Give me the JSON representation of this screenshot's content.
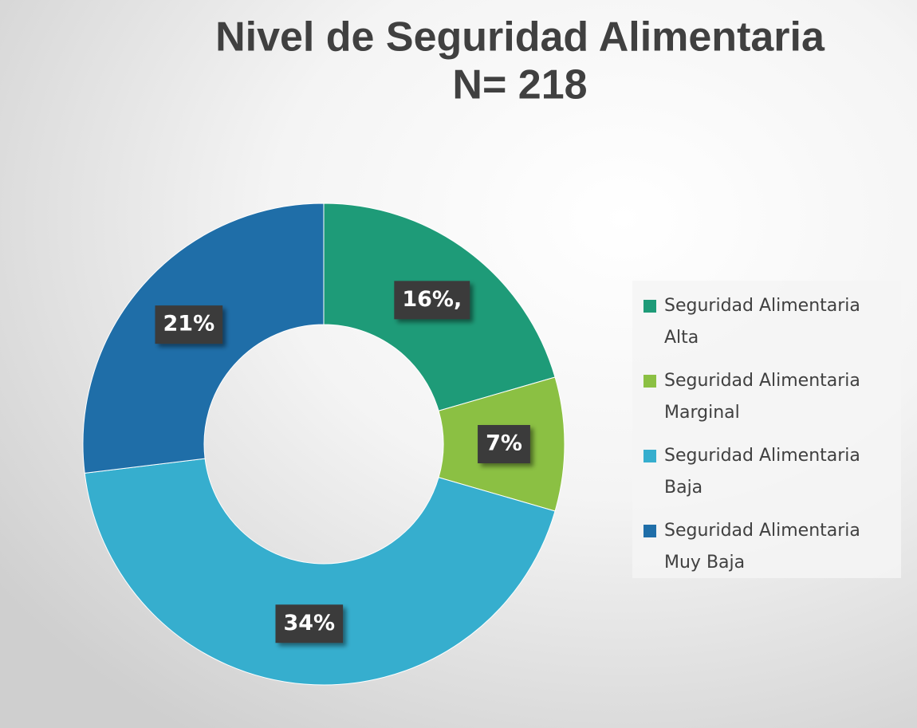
{
  "chart_data": {
    "type": "donut",
    "title": [
      "Nivel de Seguridad Alimentaria",
      "N= 218"
    ],
    "categories": [
      "Seguridad Alimentaria Alta",
      "Seguridad Alimentaria Marginal",
      "Seguridad Alimentaria Baja",
      "Seguridad Alimentaria Muy Baja"
    ],
    "values": [
      16,
      7,
      34,
      21
    ],
    "value_labels": [
      "16%,",
      "7%",
      "34%",
      "21%"
    ],
    "colors": [
      "#1e9b78",
      "#8bc043",
      "#36aece",
      "#1f6ea8"
    ],
    "legend": "right"
  }
}
